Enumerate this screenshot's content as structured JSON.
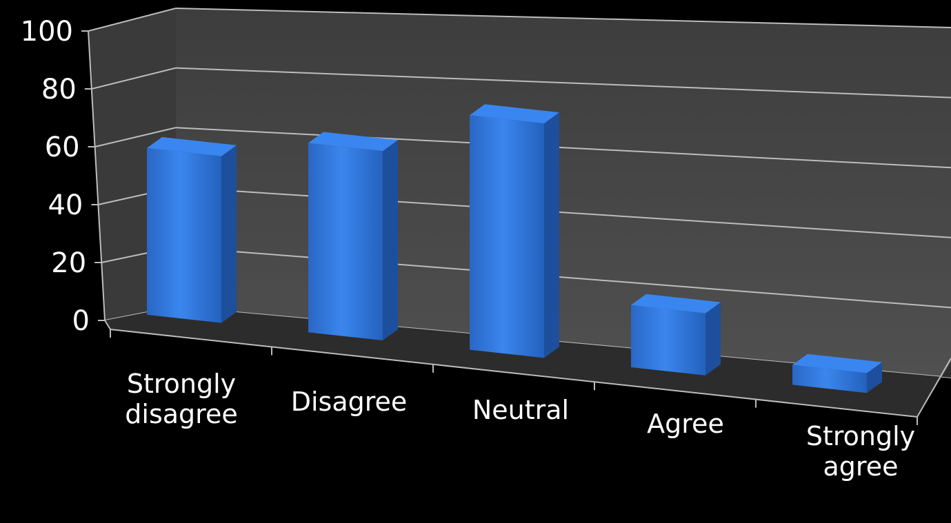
{
  "chart_data": {
    "type": "bar",
    "title": "",
    "xlabel": "",
    "ylabel": "",
    "categories": [
      "Strongly disagree",
      "Disagree",
      "Neutral",
      "Agree",
      "Strongly agree"
    ],
    "values": [
      59,
      67,
      83,
      22,
      7
    ],
    "ylim": [
      0,
      100
    ],
    "yticks": [
      "0",
      "20",
      "40",
      "60",
      "80",
      "100"
    ],
    "grid": true,
    "legend": "none",
    "style": "3d-column",
    "colors": {
      "background": "#000000",
      "bar_front": "#2e74d8",
      "bar_side": "#1d4f9c",
      "bar_top": "#3a86f0",
      "wall": "#4a4a4a",
      "floor": "#2c2c2c",
      "grid": "#bdbdbd",
      "text": "#ffffff"
    }
  }
}
